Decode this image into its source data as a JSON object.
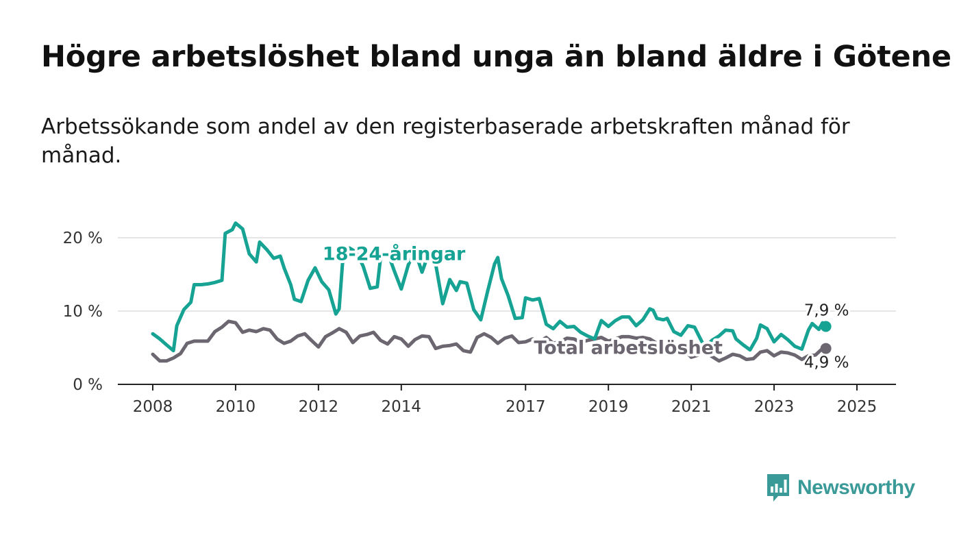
{
  "page": {
    "title": "Högre arbetslöshet bland unga än bland äldre i Götene",
    "subtitle": "Arbetssökande som andel av den registerbaserade arbetskraften månad för månad."
  },
  "logo": {
    "text": "Newsworthy",
    "icon": "bar-chart-speech-bubble-icon",
    "color": "#3a9a97"
  },
  "chart_data": {
    "type": "line",
    "title": "Högre arbetslöshet bland unga än bland äldre i Götene",
    "subtitle": "Arbetssökande som andel av den registerbaserade arbetskraften månad för månad.",
    "xlabel": "",
    "ylabel": "",
    "x_ticks": [
      2008,
      2010,
      2012,
      2014,
      2017,
      2019,
      2021,
      2023,
      2025
    ],
    "x_range": [
      2008.0,
      2025.17
    ],
    "y_ticks": [
      0,
      10,
      20
    ],
    "y_tick_labels": [
      "0 %",
      "10 %",
      "20 %"
    ],
    "ylim": [
      0,
      20
    ],
    "grid": true,
    "legend": "none",
    "series": [
      {
        "name": "18-24-åringar",
        "color": "#16a394",
        "label_year": 2012.1,
        "end_label": "7,9 %",
        "points": [
          [
            2008.0,
            6.9
          ],
          [
            2008.17,
            6.2
          ],
          [
            2008.33,
            5.4
          ],
          [
            2008.5,
            4.6
          ],
          [
            2008.58,
            8.0
          ],
          [
            2008.75,
            10.2
          ],
          [
            2008.92,
            11.2
          ],
          [
            2009.0,
            13.6
          ],
          [
            2009.17,
            13.6
          ],
          [
            2009.33,
            13.7
          ],
          [
            2009.5,
            13.9
          ],
          [
            2009.67,
            14.2
          ],
          [
            2009.75,
            20.6
          ],
          [
            2009.92,
            21.1
          ],
          [
            2010.0,
            22.0
          ],
          [
            2010.17,
            21.2
          ],
          [
            2010.33,
            17.8
          ],
          [
            2010.5,
            16.7
          ],
          [
            2010.58,
            19.4
          ],
          [
            2010.75,
            18.4
          ],
          [
            2010.92,
            17.2
          ],
          [
            2011.08,
            17.5
          ],
          [
            2011.17,
            15.9
          ],
          [
            2011.33,
            13.6
          ],
          [
            2011.42,
            11.6
          ],
          [
            2011.58,
            11.3
          ],
          [
            2011.75,
            14.2
          ],
          [
            2011.92,
            15.9
          ],
          [
            2012.08,
            14.0
          ],
          [
            2012.25,
            12.9
          ],
          [
            2012.42,
            9.6
          ],
          [
            2012.5,
            10.3
          ],
          [
            2012.58,
            16.5
          ],
          [
            2012.75,
            18.6
          ],
          [
            2012.92,
            18.0
          ],
          [
            2013.08,
            16.1
          ],
          [
            2013.25,
            13.1
          ],
          [
            2013.42,
            13.3
          ],
          [
            2013.5,
            17.3
          ],
          [
            2013.67,
            18.0
          ],
          [
            2013.83,
            15.5
          ],
          [
            2014.0,
            13.0
          ],
          [
            2014.17,
            16.3
          ],
          [
            2014.33,
            18.2
          ],
          [
            2014.5,
            15.3
          ],
          [
            2014.67,
            18.0
          ],
          [
            2014.83,
            16.4
          ],
          [
            2015.0,
            11.0
          ],
          [
            2015.17,
            14.3
          ],
          [
            2015.33,
            12.8
          ],
          [
            2015.42,
            14.0
          ],
          [
            2015.58,
            13.8
          ],
          [
            2015.75,
            10.2
          ],
          [
            2015.92,
            8.8
          ],
          [
            2016.08,
            12.6
          ],
          [
            2016.25,
            16.4
          ],
          [
            2016.33,
            17.3
          ],
          [
            2016.42,
            14.4
          ],
          [
            2016.58,
            12.1
          ],
          [
            2016.75,
            9.0
          ],
          [
            2016.92,
            9.1
          ],
          [
            2017.0,
            11.8
          ],
          [
            2017.17,
            11.5
          ],
          [
            2017.33,
            11.7
          ],
          [
            2017.5,
            8.2
          ],
          [
            2017.67,
            7.6
          ],
          [
            2017.83,
            8.6
          ],
          [
            2018.0,
            7.8
          ],
          [
            2018.17,
            7.9
          ],
          [
            2018.33,
            7.1
          ],
          [
            2018.5,
            6.6
          ],
          [
            2018.67,
            6.2
          ],
          [
            2018.83,
            8.7
          ],
          [
            2019.0,
            7.9
          ],
          [
            2019.17,
            8.7
          ],
          [
            2019.33,
            9.2
          ],
          [
            2019.5,
            9.2
          ],
          [
            2019.67,
            8.0
          ],
          [
            2019.83,
            8.8
          ],
          [
            2020.0,
            10.3
          ],
          [
            2020.08,
            10.1
          ],
          [
            2020.17,
            9.0
          ],
          [
            2020.33,
            8.8
          ],
          [
            2020.42,
            9.0
          ],
          [
            2020.58,
            7.2
          ],
          [
            2020.75,
            6.7
          ],
          [
            2020.92,
            8.0
          ],
          [
            2021.08,
            7.8
          ],
          [
            2021.25,
            5.9
          ],
          [
            2021.33,
            5.0
          ],
          [
            2021.5,
            6.0
          ],
          [
            2021.67,
            6.6
          ],
          [
            2021.83,
            7.4
          ],
          [
            2022.0,
            7.3
          ],
          [
            2022.08,
            6.2
          ],
          [
            2022.25,
            5.4
          ],
          [
            2022.42,
            4.7
          ],
          [
            2022.58,
            6.3
          ],
          [
            2022.67,
            8.1
          ],
          [
            2022.83,
            7.6
          ],
          [
            2023.0,
            5.8
          ],
          [
            2023.17,
            6.8
          ],
          [
            2023.33,
            6.1
          ],
          [
            2023.5,
            5.2
          ],
          [
            2023.67,
            4.8
          ],
          [
            2023.83,
            7.4
          ],
          [
            2023.92,
            8.3
          ],
          [
            2024.08,
            7.5
          ],
          [
            2024.17,
            8.4
          ],
          [
            2024.25,
            7.9
          ]
        ]
      },
      {
        "name": "Total arbetslöshet",
        "color": "#6b6670",
        "label_year": 2017.2,
        "end_label": "4,9 %",
        "points": [
          [
            2008.0,
            4.1
          ],
          [
            2008.17,
            3.2
          ],
          [
            2008.33,
            3.2
          ],
          [
            2008.5,
            3.6
          ],
          [
            2008.67,
            4.2
          ],
          [
            2008.83,
            5.6
          ],
          [
            2009.0,
            5.9
          ],
          [
            2009.17,
            5.9
          ],
          [
            2009.33,
            5.9
          ],
          [
            2009.5,
            7.2
          ],
          [
            2009.67,
            7.8
          ],
          [
            2009.83,
            8.6
          ],
          [
            2010.0,
            8.4
          ],
          [
            2010.17,
            7.1
          ],
          [
            2010.33,
            7.4
          ],
          [
            2010.5,
            7.2
          ],
          [
            2010.67,
            7.6
          ],
          [
            2010.83,
            7.4
          ],
          [
            2011.0,
            6.2
          ],
          [
            2011.17,
            5.6
          ],
          [
            2011.33,
            5.9
          ],
          [
            2011.5,
            6.6
          ],
          [
            2011.67,
            6.9
          ],
          [
            2011.83,
            6.0
          ],
          [
            2012.0,
            5.1
          ],
          [
            2012.17,
            6.5
          ],
          [
            2012.33,
            7.0
          ],
          [
            2012.5,
            7.6
          ],
          [
            2012.67,
            7.1
          ],
          [
            2012.83,
            5.7
          ],
          [
            2013.0,
            6.6
          ],
          [
            2013.17,
            6.8
          ],
          [
            2013.33,
            7.1
          ],
          [
            2013.5,
            6.0
          ],
          [
            2013.67,
            5.5
          ],
          [
            2013.83,
            6.5
          ],
          [
            2014.0,
            6.2
          ],
          [
            2014.17,
            5.2
          ],
          [
            2014.33,
            6.1
          ],
          [
            2014.5,
            6.6
          ],
          [
            2014.67,
            6.5
          ],
          [
            2014.83,
            4.9
          ],
          [
            2015.0,
            5.2
          ],
          [
            2015.17,
            5.3
          ],
          [
            2015.33,
            5.5
          ],
          [
            2015.5,
            4.6
          ],
          [
            2015.67,
            4.4
          ],
          [
            2015.83,
            6.4
          ],
          [
            2016.0,
            6.9
          ],
          [
            2016.17,
            6.4
          ],
          [
            2016.33,
            5.6
          ],
          [
            2016.5,
            6.3
          ],
          [
            2016.67,
            6.6
          ],
          [
            2016.83,
            5.7
          ],
          [
            2017.0,
            5.8
          ],
          [
            2017.17,
            6.2
          ],
          [
            2017.33,
            5.8
          ],
          [
            2017.5,
            6.4
          ],
          [
            2017.67,
            5.6
          ],
          [
            2017.83,
            5.8
          ],
          [
            2018.0,
            6.3
          ],
          [
            2018.17,
            6.2
          ],
          [
            2018.33,
            5.7
          ],
          [
            2018.5,
            6.0
          ],
          [
            2018.67,
            6.2
          ],
          [
            2018.83,
            6.4
          ],
          [
            2019.0,
            5.9
          ],
          [
            2019.17,
            6.2
          ],
          [
            2019.33,
            6.5
          ],
          [
            2019.5,
            6.5
          ],
          [
            2019.67,
            6.3
          ],
          [
            2019.83,
            6.4
          ],
          [
            2020.0,
            6.2
          ],
          [
            2020.17,
            5.6
          ],
          [
            2020.33,
            5.2
          ],
          [
            2020.5,
            5.0
          ],
          [
            2020.67,
            5.3
          ],
          [
            2020.83,
            4.7
          ],
          [
            2021.0,
            3.7
          ],
          [
            2021.17,
            4.0
          ],
          [
            2021.33,
            4.5
          ],
          [
            2021.5,
            3.8
          ],
          [
            2021.67,
            3.2
          ],
          [
            2021.83,
            3.6
          ],
          [
            2022.0,
            4.1
          ],
          [
            2022.17,
            3.9
          ],
          [
            2022.33,
            3.4
          ],
          [
            2022.5,
            3.5
          ],
          [
            2022.67,
            4.4
          ],
          [
            2022.83,
            4.6
          ],
          [
            2023.0,
            3.9
          ],
          [
            2023.17,
            4.4
          ],
          [
            2023.33,
            4.3
          ],
          [
            2023.5,
            4.0
          ],
          [
            2023.67,
            3.4
          ],
          [
            2023.83,
            3.9
          ],
          [
            2024.0,
            4.0
          ],
          [
            2024.17,
            4.9
          ],
          [
            2024.25,
            4.9
          ]
        ]
      }
    ]
  }
}
